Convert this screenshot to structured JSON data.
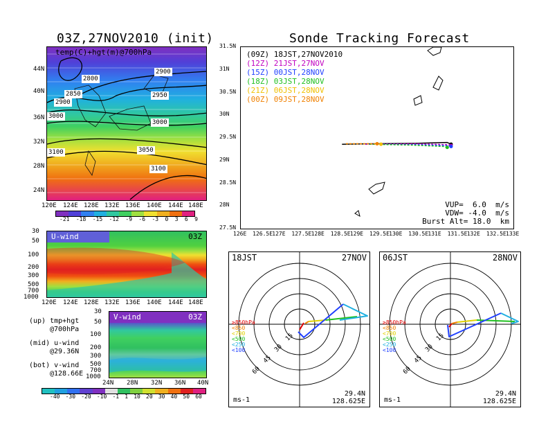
{
  "left_title": "03Z,27NOV2010 (init)",
  "right_title": "Sonde Tracking Forecast",
  "map_panel": {
    "label": "temp(C)+hgt(m)@700hPa",
    "contours": [
      "2800",
      "2850",
      "2900",
      "2900",
      "2950",
      "3000",
      "3000",
      "3050",
      "3100",
      "3100"
    ],
    "lat_ticks": [
      "44N",
      "40N",
      "36N",
      "32N",
      "28N",
      "24N"
    ],
    "lon_ticks": [
      "120E",
      "124E",
      "128E",
      "132E",
      "136E",
      "140E",
      "144E",
      "148E"
    ],
    "colorbar": [
      "-21",
      "-18",
      "-15",
      "-12",
      "-9",
      "-6",
      "-3",
      "0",
      "3",
      "6",
      "9"
    ]
  },
  "uwind_panel": {
    "label": "U-wind",
    "time": "03Z",
    "p_ticks": [
      "30",
      "50",
      "100",
      "200",
      "300",
      "500",
      "700",
      "1000"
    ],
    "lon_ticks": [
      "120E",
      "124E",
      "128E",
      "132E",
      "136E",
      "140E",
      "144E",
      "148E"
    ]
  },
  "vwind_panel": {
    "label": "V-wind",
    "time": "03Z",
    "p_ticks": [
      "30",
      "50",
      "100",
      "200",
      "300",
      "500",
      "700",
      "1000"
    ],
    "lat_ticks": [
      "24N",
      "28N",
      "32N",
      "36N",
      "40N"
    ],
    "colorbar": [
      "-40",
      "-30",
      "-20",
      "-10",
      "-1",
      "1",
      "10",
      "20",
      "30",
      "40",
      "50",
      "60"
    ]
  },
  "side_notes": [
    {
      "line1": "(up) tmp+hgt",
      "line2": "@700hPa"
    },
    {
      "line1": "(mid) u-wind",
      "line2": "@29.36N"
    },
    {
      "line1": "(bot) v-wind",
      "line2": "@128.66E"
    }
  ],
  "track_panel": {
    "legend": [
      {
        "text": "(09Z) 18JST,27NOV2010",
        "color": "#000000"
      },
      {
        "text": "(12Z) 21JST,27NOV",
        "color": "#c000c0"
      },
      {
        "text": "(15Z) 00JST,28NOV",
        "color": "#2040ff"
      },
      {
        "text": "(18Z) 03JST,28NOV",
        "color": "#20c020"
      },
      {
        "text": "(21Z) 06JST,28NOV",
        "color": "#f0c000"
      },
      {
        "text": "(00Z) 09JST,28NOV",
        "color": "#f08000"
      }
    ],
    "lat_ticks": [
      "31.5N",
      "31N",
      "30.5N",
      "30N",
      "29.5N",
      "29N",
      "28.5N",
      "28N",
      "27.5N"
    ],
    "lon_ticks": [
      "126E",
      "126.5E",
      "127E",
      "127.5E",
      "128E",
      "128.5E",
      "129E",
      "129.5E",
      "130E",
      "130.5E",
      "131E",
      "131.5E",
      "132E",
      "132.5E",
      "133E"
    ],
    "params": [
      "VUP=  6.0  m/s",
      "VDW= -4.0  m/s",
      "Burst Alt= 18.0  km"
    ]
  },
  "chart_data": [
    {
      "type": "line",
      "title": "Sonde Tracking Forecast",
      "xlim": [
        126,
        133
      ],
      "ylim": [
        27.5,
        31.5
      ],
      "series": [
        {
          "name": "(09Z) 18JST,27NOV2010",
          "color": "#000000",
          "x": [
            128.6,
            129.4,
            130.5,
            131.3,
            131.4
          ],
          "y": [
            29.36,
            29.37,
            29.38,
            29.4,
            29.36
          ]
        },
        {
          "name": "(12Z) 21JST,27NOV",
          "color": "#c000c0",
          "x": [
            129.2,
            130.5,
            131.3,
            131.4
          ],
          "y": [
            29.36,
            29.37,
            29.35,
            29.33
          ]
        },
        {
          "name": "(15Z) 00JST,28NOV",
          "color": "#2040ff",
          "x": [
            129.3,
            130.5,
            131.3,
            131.4
          ],
          "y": [
            29.36,
            29.35,
            29.33,
            29.31
          ]
        },
        {
          "name": "(18Z) 03JST,28NOV",
          "color": "#20c020",
          "x": [
            129.3,
            130.4,
            131.2,
            131.3
          ],
          "y": [
            29.36,
            29.34,
            29.31,
            29.29
          ]
        },
        {
          "name": "(21Z) 06JST,28NOV",
          "color": "#f0c000",
          "x": [
            128.7,
            129.4,
            129.6
          ],
          "y": [
            29.37,
            29.37,
            29.36
          ]
        },
        {
          "name": "(00Z) 09JST,28NOV",
          "color": "#f08000",
          "x": [
            128.7,
            129.3,
            129.5
          ],
          "y": [
            29.37,
            29.37,
            29.37
          ]
        }
      ]
    }
  ],
  "polar1": {
    "time": "18JST",
    "date": "27NOV",
    "lat": "29.4N",
    "lon": "128.625E",
    "unit": "ms-1",
    "levels": [
      {
        "text": "≥850hPa",
        "color": "#e00000"
      },
      {
        "text": "<850",
        "color": "#f08000"
      },
      {
        "text": "<700",
        "color": "#e0d000"
      },
      {
        "text": "<500",
        "color": "#20c020"
      },
      {
        "text": "<250",
        "color": "#20b0e0"
      },
      {
        "text": "<100",
        "color": "#2040ff"
      }
    ],
    "rings": [
      "15",
      "30",
      "45",
      "60"
    ]
  },
  "polar2": {
    "time": "06JST",
    "date": "28NOV",
    "lat": "29.4N",
    "lon": "128.625E",
    "unit": "ms-1",
    "levels": [
      {
        "text": "≥850hPa",
        "color": "#e00000"
      },
      {
        "text": "<850",
        "color": "#f08000"
      },
      {
        "text": "<700",
        "color": "#e0d000"
      },
      {
        "text": "<500",
        "color": "#20c020"
      },
      {
        "text": "<250",
        "color": "#20b0e0"
      },
      {
        "text": "<100",
        "color": "#2040ff"
      }
    ],
    "rings": [
      "15",
      "30",
      "45",
      "60"
    ]
  }
}
